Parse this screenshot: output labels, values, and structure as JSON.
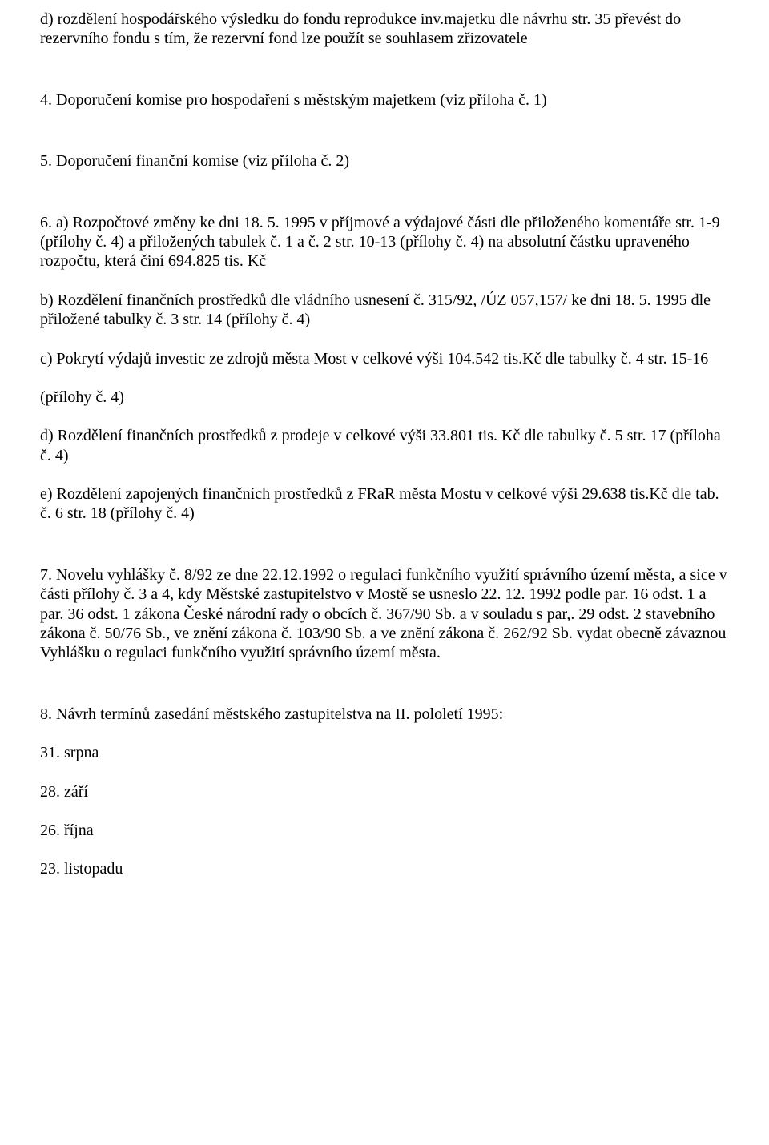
{
  "p01": "d) rozdělení hospodářského výsledku do fondu reprodukce inv.majetku dle návrhu str. 35 převést do rezervního fondu s tím, že rezervní fond lze použít se souhlasem zřizovatele",
  "p02": "4. Doporučení komise pro hospodaření s městským majetkem (viz příloha č. 1)",
  "p03": "5. Doporučení finanční komise (viz příloha č. 2)",
  "p04": "6. a) Rozpočtové změny ke dni 18. 5. 1995 v příjmové a výdajové části dle přiloženého komentáře str. 1-9 (přílohy č. 4) a přiložených tabulek č. 1 a č. 2 str. 10-13 (přílohy č. 4) na absolutní částku upraveného rozpočtu, která činí 694.825 tis. Kč",
  "p05": "b) Rozdělení finančních prostředků dle vládního usnesení č. 315/92, /ÚZ 057,157/ ke dni 18. 5. 1995 dle přiložené tabulky č. 3 str. 14 (přílohy č. 4)",
  "p06": "c) Pokrytí výdajů investic ze zdrojů města Most v celkové výši 104.542 tis.Kč dle tabulky č. 4 str. 15-16",
  "p07": "(přílohy č. 4)",
  "p08": "d) Rozdělení finančních prostředků z prodeje v celkové výši 33.801 tis. Kč dle tabulky č. 5 str. 17 (příloha č. 4)",
  "p09": "e) Rozdělení zapojených finančních prostředků z FRaR města Mostu v celkové výši 29.638 tis.Kč dle tab. č. 6 str. 18 (přílohy č. 4)",
  "p10": "7. Novelu vyhlášky č. 8/92 ze dne 22.12.1992 o regulaci funkčního využití správního území města, a sice v části přílohy č. 3 a 4, kdy Městské zastupitelstvo v Mostě se usneslo 22. 12. 1992 podle par. 16 odst. 1 a par. 36 odst. 1 zákona České národní rady o obcích č. 367/90 Sb. a v souladu s par,. 29 odst. 2 stavebního zákona č. 50/76 Sb., ve znění zákona č. 103/90 Sb. a ve znění zákona č. 262/92 Sb. vydat obecně závaznou Vyhlášku o regulaci funkčního využití správního území města.",
  "p11": "8. Návrh termínů zasedání městského zastupitelstva na II. pololetí 1995:",
  "p12": "31. srpna",
  "p13": "28. září",
  "p14": "26. října",
  "p15": "23. listopadu"
}
